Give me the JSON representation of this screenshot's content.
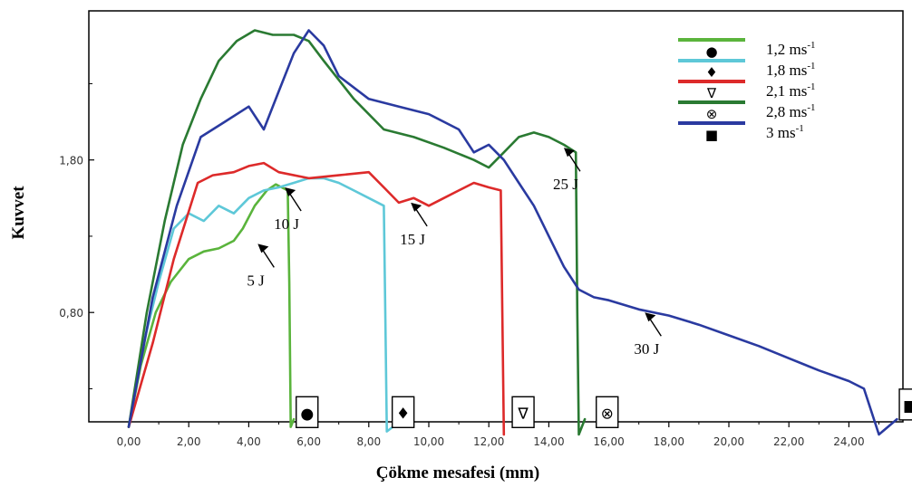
{
  "chart_data": {
    "type": "line",
    "title": "",
    "xlabel": "Çökme mesafesi (mm)",
    "ylabel": "Kuvvet",
    "xlim": [
      0,
      25.8
    ],
    "ylim": [
      0,
      2.8
    ],
    "x_ticks": [
      "0,00",
      "2,00",
      "4,00",
      "6,00",
      "8,00",
      "10,00",
      "12,00",
      "14,00",
      "16,00",
      "18,00",
      "20,00",
      "22,00",
      "24,00"
    ],
    "x_tick_values": [
      0,
      2,
      4,
      6,
      8,
      10,
      12,
      14,
      16,
      18,
      20,
      22,
      24
    ],
    "y_ticks": [
      "0,80",
      "1,80"
    ],
    "y_tick_values": [
      0.8,
      1.8
    ],
    "grid": false,
    "legend": {
      "position": "top-right",
      "entries": [
        {
          "symbol": "●",
          "speed": "1,2 ms",
          "sup": "-1",
          "color": "#5ab43c"
        },
        {
          "symbol": "♦",
          "speed": "1,8 ms",
          "sup": "-1",
          "color": "#5ec8d8"
        },
        {
          "symbol": "∇",
          "speed": "2,1 ms",
          "sup": "-1",
          "color": "#dd2a2a"
        },
        {
          "symbol": "⊗",
          "speed": "2,8 ms",
          "sup": "-1",
          "color": "#2a7a32"
        },
        {
          "symbol": "■",
          "speed": "3 ms",
          "sup": "-1",
          "color": "#2a3aa0"
        }
      ]
    },
    "series": [
      {
        "color": "#5ab43c",
        "x": [
          0,
          0.4,
          0.9,
          1.4,
          2.0,
          2.5,
          3.0,
          3.5,
          3.8,
          4.2,
          4.6,
          4.9,
          5.1,
          5.3,
          5.35,
          5.4,
          5.5
        ],
        "y": [
          0.05,
          0.45,
          0.8,
          1.0,
          1.15,
          1.2,
          1.22,
          1.27,
          1.35,
          1.5,
          1.6,
          1.64,
          1.62,
          1.6,
          1.0,
          0.05,
          0.1
        ]
      },
      {
        "color": "#5ec8d8",
        "x": [
          0,
          0.5,
          1.0,
          1.5,
          2.0,
          2.5,
          3.0,
          3.5,
          4.0,
          4.5,
          5.0,
          5.5,
          6.0,
          6.5,
          7.0,
          7.5,
          8.0,
          8.5,
          8.55,
          8.6,
          8.8
        ],
        "y": [
          0.05,
          0.6,
          1.0,
          1.35,
          1.45,
          1.4,
          1.5,
          1.45,
          1.55,
          1.6,
          1.62,
          1.65,
          1.68,
          1.68,
          1.65,
          1.6,
          1.55,
          1.5,
          0.8,
          0.02,
          0.05
        ]
      },
      {
        "color": "#dd2a2a",
        "x": [
          0,
          0.8,
          1.5,
          2.3,
          2.8,
          3.5,
          4.0,
          4.5,
          5.0,
          6.0,
          7.0,
          8.0,
          8.5,
          9.0,
          9.5,
          10.0,
          10.5,
          11.0,
          11.5,
          12.0,
          12.4,
          12.45,
          12.5
        ],
        "y": [
          0.05,
          0.6,
          1.15,
          1.65,
          1.7,
          1.72,
          1.76,
          1.78,
          1.72,
          1.68,
          1.7,
          1.72,
          1.62,
          1.52,
          1.55,
          1.5,
          1.55,
          1.6,
          1.65,
          1.62,
          1.6,
          0.8,
          0.0
        ]
      },
      {
        "color": "#2a7a32",
        "x": [
          0,
          0.6,
          1.2,
          1.8,
          2.4,
          3.0,
          3.6,
          4.2,
          4.8,
          5.5,
          6.0,
          6.5,
          7.5,
          8.5,
          9.5,
          10.5,
          11.5,
          12.0,
          12.5,
          13.0,
          13.5,
          14.0,
          14.5,
          14.9,
          14.95,
          15.0,
          15.2
        ],
        "y": [
          0.05,
          0.8,
          1.4,
          1.9,
          2.2,
          2.45,
          2.58,
          2.65,
          2.62,
          2.62,
          2.58,
          2.45,
          2.2,
          2.0,
          1.95,
          1.88,
          1.8,
          1.75,
          1.85,
          1.95,
          1.98,
          1.95,
          1.9,
          1.85,
          0.8,
          0.0,
          0.1
        ]
      },
      {
        "color": "#2a3aa0",
        "x": [
          0,
          0.8,
          1.6,
          2.4,
          3.2,
          4.0,
          4.5,
          5.0,
          5.5,
          6.0,
          6.5,
          7.0,
          8.0,
          9.0,
          10.0,
          11.0,
          11.5,
          12.0,
          12.5,
          13.0,
          13.5,
          14.0,
          14.5,
          15.0,
          15.5,
          16.0,
          17.0,
          18.0,
          19.0,
          20.0,
          21.0,
          22.0,
          23.0,
          24.0,
          24.5,
          25.0,
          25.3,
          25.6
        ],
        "y": [
          0.05,
          0.9,
          1.5,
          1.95,
          2.05,
          2.15,
          2.0,
          2.25,
          2.5,
          2.65,
          2.55,
          2.35,
          2.2,
          2.15,
          2.1,
          2.0,
          1.85,
          1.9,
          1.8,
          1.65,
          1.5,
          1.3,
          1.1,
          0.95,
          0.9,
          0.88,
          0.82,
          0.78,
          0.72,
          0.65,
          0.58,
          0.5,
          0.42,
          0.35,
          0.3,
          0.0,
          0.05,
          0.1
        ]
      }
    ],
    "annotations": [
      {
        "label": "5 J",
        "x": 4.3,
        "y": 1.25
      },
      {
        "label": "10 J",
        "x": 5.2,
        "y": 1.62
      },
      {
        "label": "15 J",
        "x": 9.4,
        "y": 1.52
      },
      {
        "label": "25 J",
        "x": 14.5,
        "y": 1.88
      },
      {
        "label": "30 J",
        "x": 17.2,
        "y": 0.8
      }
    ],
    "end_markers": [
      {
        "symbol": "●",
        "x": 5.4,
        "y": 0.2
      },
      {
        "symbol": "♦",
        "x": 8.6,
        "y": 0.2
      },
      {
        "symbol": "∇",
        "x": 12.6,
        "y": 0.2
      },
      {
        "symbol": "⊗",
        "x": 15.4,
        "y": 0.2
      },
      {
        "symbol": "■",
        "x": 25.5,
        "y": 0.25
      }
    ]
  }
}
